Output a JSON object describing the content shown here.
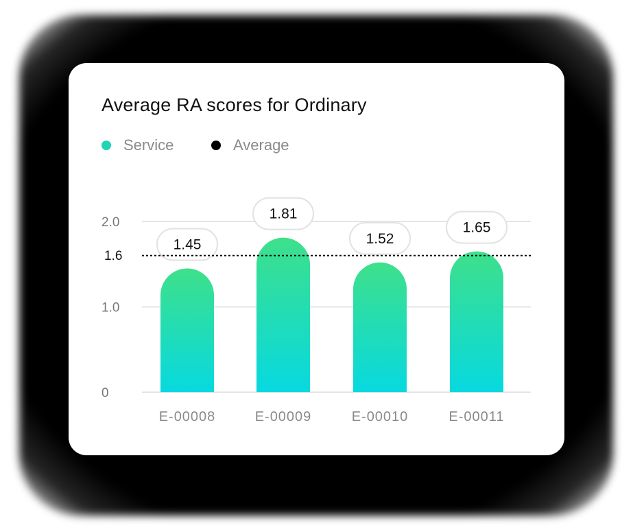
{
  "chart_data": {
    "type": "bar",
    "title": "Average RA scores for Ordinary",
    "categories": [
      "E-00008",
      "E-00009",
      "E-00010",
      "E-00011"
    ],
    "series": [
      {
        "name": "Service",
        "values": [
          1.45,
          1.81,
          1.52,
          1.65
        ],
        "color": "#22d3b6"
      }
    ],
    "average": {
      "name": "Average",
      "value": 1.6,
      "label": "1.6",
      "color": "#000000"
    },
    "y_ticks": [
      {
        "value": 0,
        "label": "0"
      },
      {
        "value": 1.0,
        "label": "1.0"
      },
      {
        "value": 2.0,
        "label": "2.0"
      }
    ],
    "ylim": [
      0,
      2.0
    ],
    "grid": true,
    "legend_position": "top-left",
    "colors": {
      "bar_top": "#3ee08a",
      "bar_bottom": "#07d9e0",
      "grid": "#e4e4e4"
    }
  }
}
